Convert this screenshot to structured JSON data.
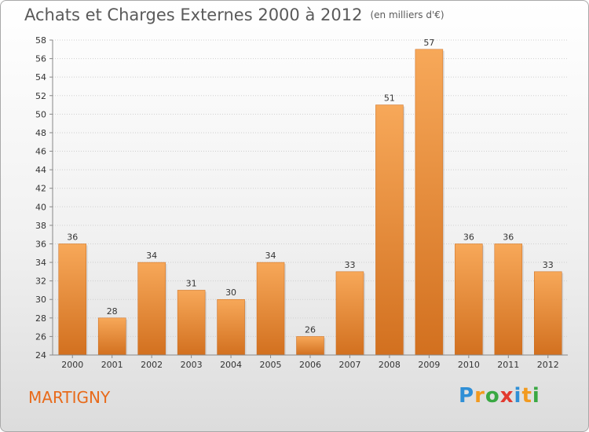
{
  "title": "Achats et Charges Externes 2000 à 2012",
  "unit_note": "(en milliers d'€)",
  "city": "MARTIGNY",
  "logo": {
    "letters": [
      "P",
      "r",
      "o",
      "x",
      "i",
      "t",
      "i"
    ],
    "colors": [
      "#2f8fd6",
      "#f29a1f",
      "#3aa843",
      "#e23a2f",
      "#2f8fd6",
      "#f29a1f",
      "#3aa843"
    ]
  },
  "chart_data": {
    "type": "bar",
    "categories": [
      "2000",
      "2001",
      "2002",
      "2003",
      "2004",
      "2005",
      "2006",
      "2007",
      "2008",
      "2009",
      "2010",
      "2011",
      "2012"
    ],
    "values": [
      36,
      28,
      34,
      31,
      30,
      34,
      26,
      33,
      51,
      57,
      36,
      36,
      33
    ],
    "data_labels": [
      "36",
      "28",
      "34",
      "31",
      "30",
      "34",
      "26",
      "33",
      "51",
      "57",
      "36",
      "36",
      "33"
    ],
    "ylim": [
      24,
      58
    ],
    "yticks": [
      24,
      26,
      28,
      30,
      32,
      34,
      36,
      38,
      40,
      42,
      44,
      46,
      48,
      50,
      52,
      54,
      56,
      58
    ],
    "grid": true,
    "bar_color": "#f0902e"
  }
}
